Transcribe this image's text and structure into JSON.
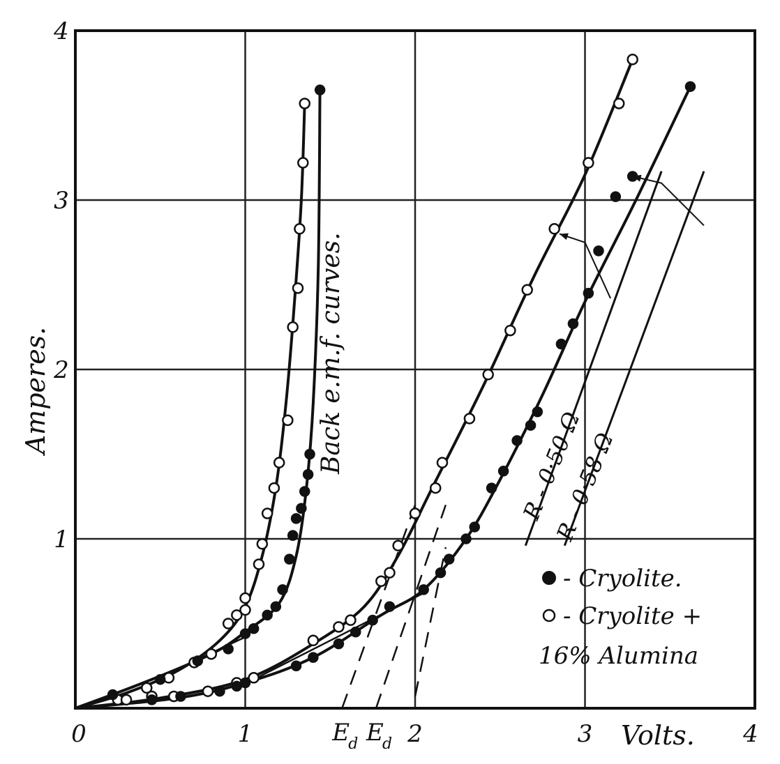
{
  "chart_data": {
    "type": "scatter",
    "xlabel": "Volts.",
    "ylabel": "Amperes.",
    "xlim": [
      0,
      4
    ],
    "ylim": [
      0,
      4
    ],
    "x_ticks": [
      {
        "v": 0,
        "label": "0"
      },
      {
        "v": 1,
        "label": "1"
      },
      {
        "v": 2,
        "label": "2"
      },
      {
        "v": 3,
        "label": "3"
      },
      {
        "v": 4,
        "label": "4"
      }
    ],
    "y_ticks": [
      {
        "v": 1,
        "label": "1"
      },
      {
        "v": 2,
        "label": "2"
      },
      {
        "v": 3,
        "label": "3"
      },
      {
        "v": 4,
        "label": "4"
      }
    ],
    "grid": true,
    "legend_position": "bottom-right",
    "legend": [
      {
        "marker": "filled",
        "label": "- Cryolite."
      },
      {
        "marker": "open",
        "label": "- Cryolite +"
      },
      {
        "marker": "none",
        "label": "16% Alumina"
      }
    ],
    "annotations": {
      "back_emf": "Back e.m.f. curves.",
      "r1": "R - 0·50 Ω",
      "r2": "R - 0·58 Ω",
      "ed_main": "E",
      "ed_sub": "d",
      "ed_x": [
        1.57,
        1.77
      ]
    },
    "series": [
      {
        "marker": "open",
        "points": [
          [
            0.25,
            0.05
          ],
          [
            0.42,
            0.12
          ],
          [
            0.55,
            0.18
          ],
          [
            0.7,
            0.27
          ],
          [
            0.8,
            0.32
          ],
          [
            0.9,
            0.5
          ],
          [
            0.95,
            0.55
          ],
          [
            1.0,
            0.65
          ],
          [
            1.0,
            0.58
          ],
          [
            1.08,
            0.85
          ],
          [
            1.1,
            0.97
          ],
          [
            1.13,
            1.15
          ],
          [
            1.17,
            1.3
          ],
          [
            1.2,
            1.45
          ],
          [
            1.25,
            1.7
          ],
          [
            1.28,
            2.25
          ],
          [
            1.31,
            2.48
          ],
          [
            1.32,
            2.83
          ],
          [
            1.34,
            3.22
          ],
          [
            1.35,
            3.57
          ]
        ],
        "curve": [
          [
            0.0,
            0.0
          ],
          [
            0.3,
            0.09
          ],
          [
            0.6,
            0.22
          ],
          [
            0.85,
            0.4
          ],
          [
            1.0,
            0.6
          ],
          [
            1.1,
            0.9
          ],
          [
            1.18,
            1.3
          ],
          [
            1.24,
            1.8
          ],
          [
            1.29,
            2.4
          ],
          [
            1.33,
            3.0
          ],
          [
            1.35,
            3.57
          ]
        ]
      },
      {
        "marker": "filled",
        "points": [
          [
            0.22,
            0.08
          ],
          [
            0.5,
            0.17
          ],
          [
            0.72,
            0.28
          ],
          [
            0.9,
            0.35
          ],
          [
            1.0,
            0.44
          ],
          [
            1.05,
            0.47
          ],
          [
            1.13,
            0.55
          ],
          [
            1.18,
            0.6
          ],
          [
            1.22,
            0.7
          ],
          [
            1.26,
            0.88
          ],
          [
            1.28,
            1.02
          ],
          [
            1.3,
            1.12
          ],
          [
            1.33,
            1.18
          ],
          [
            1.35,
            1.28
          ],
          [
            1.37,
            1.38
          ],
          [
            1.38,
            1.5
          ],
          [
            1.44,
            3.65
          ]
        ],
        "curve": [
          [
            0.0,
            0.0
          ],
          [
            0.4,
            0.15
          ],
          [
            0.8,
            0.32
          ],
          [
            1.0,
            0.45
          ],
          [
            1.2,
            0.62
          ],
          [
            1.3,
            0.9
          ],
          [
            1.36,
            1.3
          ],
          [
            1.4,
            1.8
          ],
          [
            1.43,
            2.6
          ],
          [
            1.44,
            3.65
          ]
        ]
      },
      {
        "marker": "open",
        "points": [
          [
            0.3,
            0.05
          ],
          [
            0.45,
            0.07
          ],
          [
            0.58,
            0.07
          ],
          [
            0.78,
            0.1
          ],
          [
            0.95,
            0.15
          ],
          [
            1.05,
            0.18
          ],
          [
            1.4,
            0.4
          ],
          [
            1.55,
            0.48
          ],
          [
            1.62,
            0.52
          ],
          [
            1.8,
            0.75
          ],
          [
            1.85,
            0.8
          ],
          [
            1.9,
            0.96
          ],
          [
            2.0,
            1.15
          ],
          [
            2.12,
            1.3
          ],
          [
            2.16,
            1.45
          ],
          [
            2.32,
            1.71
          ],
          [
            2.43,
            1.97
          ],
          [
            2.56,
            2.23
          ],
          [
            2.66,
            2.47
          ],
          [
            2.82,
            2.83
          ],
          [
            3.02,
            3.22
          ],
          [
            3.2,
            3.57
          ],
          [
            3.28,
            3.83
          ]
        ],
        "curve": [
          [
            0.0,
            0.0
          ],
          [
            0.5,
            0.06
          ],
          [
            1.0,
            0.17
          ],
          [
            1.4,
            0.38
          ],
          [
            1.7,
            0.6
          ],
          [
            1.9,
            0.9
          ],
          [
            2.1,
            1.3
          ],
          [
            2.4,
            1.9
          ],
          [
            2.7,
            2.55
          ],
          [
            3.0,
            3.15
          ],
          [
            3.28,
            3.83
          ]
        ]
      },
      {
        "marker": "filled",
        "points": [
          [
            0.45,
            0.05
          ],
          [
            0.62,
            0.07
          ],
          [
            0.85,
            0.1
          ],
          [
            0.95,
            0.13
          ],
          [
            1.0,
            0.15
          ],
          [
            1.3,
            0.25
          ],
          [
            1.4,
            0.3
          ],
          [
            1.55,
            0.38
          ],
          [
            1.65,
            0.45
          ],
          [
            1.75,
            0.52
          ],
          [
            1.85,
            0.6
          ],
          [
            2.05,
            0.7
          ],
          [
            2.15,
            0.8
          ],
          [
            2.2,
            0.88
          ],
          [
            2.3,
            1.0
          ],
          [
            2.35,
            1.07
          ],
          [
            2.45,
            1.3
          ],
          [
            2.52,
            1.4
          ],
          [
            2.6,
            1.58
          ],
          [
            2.68,
            1.67
          ],
          [
            2.72,
            1.75
          ],
          [
            2.86,
            2.15
          ],
          [
            2.93,
            2.27
          ],
          [
            3.02,
            2.45
          ],
          [
            3.08,
            2.7
          ],
          [
            3.18,
            3.02
          ],
          [
            3.28,
            3.14
          ],
          [
            3.62,
            3.67
          ]
        ],
        "curve": [
          [
            0.0,
            0.0
          ],
          [
            0.6,
            0.06
          ],
          [
            1.0,
            0.15
          ],
          [
            1.4,
            0.3
          ],
          [
            1.8,
            0.55
          ],
          [
            2.05,
            0.7
          ],
          [
            2.3,
            1.0
          ],
          [
            2.5,
            1.35
          ],
          [
            2.75,
            1.85
          ],
          [
            3.0,
            2.4
          ],
          [
            3.3,
            3.0
          ],
          [
            3.62,
            3.67
          ]
        ]
      }
    ],
    "dashed_lines": [
      [
        [
          1.57,
          0.0
        ],
        [
          2.0,
          1.2
        ]
      ],
      [
        [
          1.77,
          0.0
        ],
        [
          2.18,
          1.2
        ]
      ],
      [
        [
          2.0,
          0.07
        ],
        [
          2.18,
          0.95
        ]
      ]
    ],
    "tangent_lines": [
      [
        [
          1.05,
          0.17
        ],
        [
          2.05,
          0.68
        ]
      ],
      [
        [
          0.7,
          0.28
        ],
        [
          1.0,
          0.42
        ]
      ]
    ],
    "resistance_lines": [
      [
        [
          2.65,
          0.96
        ],
        [
          3.45,
          3.17
        ]
      ],
      [
        [
          2.88,
          0.96
        ],
        [
          3.7,
          3.17
        ]
      ]
    ],
    "leaders": [
      [
        [
          2.85,
          2.8
        ],
        [
          3.0,
          2.75
        ],
        [
          3.15,
          2.42
        ]
      ],
      [
        [
          3.28,
          3.14
        ],
        [
          3.45,
          3.1
        ],
        [
          3.7,
          2.85
        ]
      ]
    ]
  }
}
